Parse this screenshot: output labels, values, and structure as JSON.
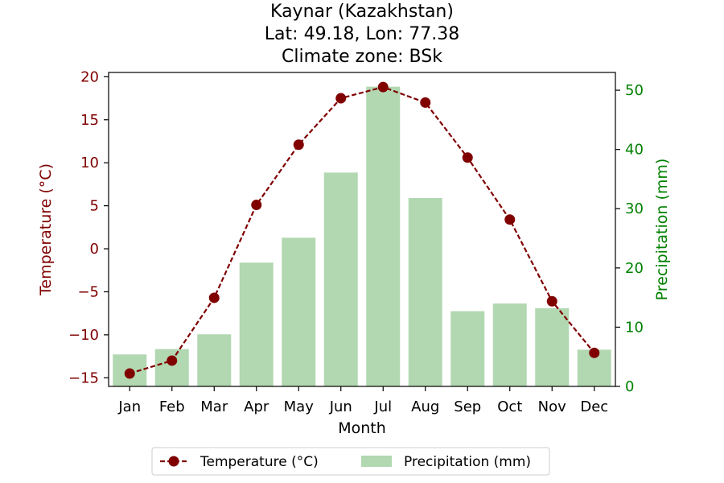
{
  "colors": {
    "temperature": "#800000",
    "precipitation": "#008000",
    "bar_fill": "#b2d8b2"
  },
  "chart_data": {
    "type": "bar",
    "title": [
      "Kaynar (Kazakhstan)",
      "Lat: 49.18, Lon: 77.38",
      "Climate zone: BSk"
    ],
    "xlabel": "Month",
    "ylabel_left": "Temperature (°C)",
    "ylabel_right": "Precipitation (mm)",
    "categories": [
      "Jan",
      "Feb",
      "Mar",
      "Apr",
      "May",
      "Jun",
      "Jul",
      "Aug",
      "Sep",
      "Oct",
      "Nov",
      "Dec"
    ],
    "temperature_ylim": [
      -16,
      20.5
    ],
    "temperature_ticks": [
      -15,
      -10,
      -5,
      0,
      5,
      10,
      15,
      20
    ],
    "precipitation_ylim": [
      0,
      53
    ],
    "precipitation_ticks": [
      0,
      10,
      20,
      30,
      40,
      50
    ],
    "series": [
      {
        "name": "Temperature (°C)",
        "kind": "line",
        "axis": "left",
        "values": [
          -14.5,
          -13.0,
          -5.7,
          5.1,
          12.1,
          17.5,
          18.8,
          17.0,
          10.6,
          3.4,
          -6.1,
          -12.1
        ]
      },
      {
        "name": "Precipitation (mm)",
        "kind": "bar",
        "axis": "right",
        "values": [
          5.4,
          6.3,
          8.8,
          20.9,
          25.1,
          36.1,
          50.6,
          31.8,
          12.7,
          14.0,
          13.2,
          6.2
        ]
      }
    ],
    "legend": {
      "position": "bottom-center"
    },
    "grid": false
  }
}
